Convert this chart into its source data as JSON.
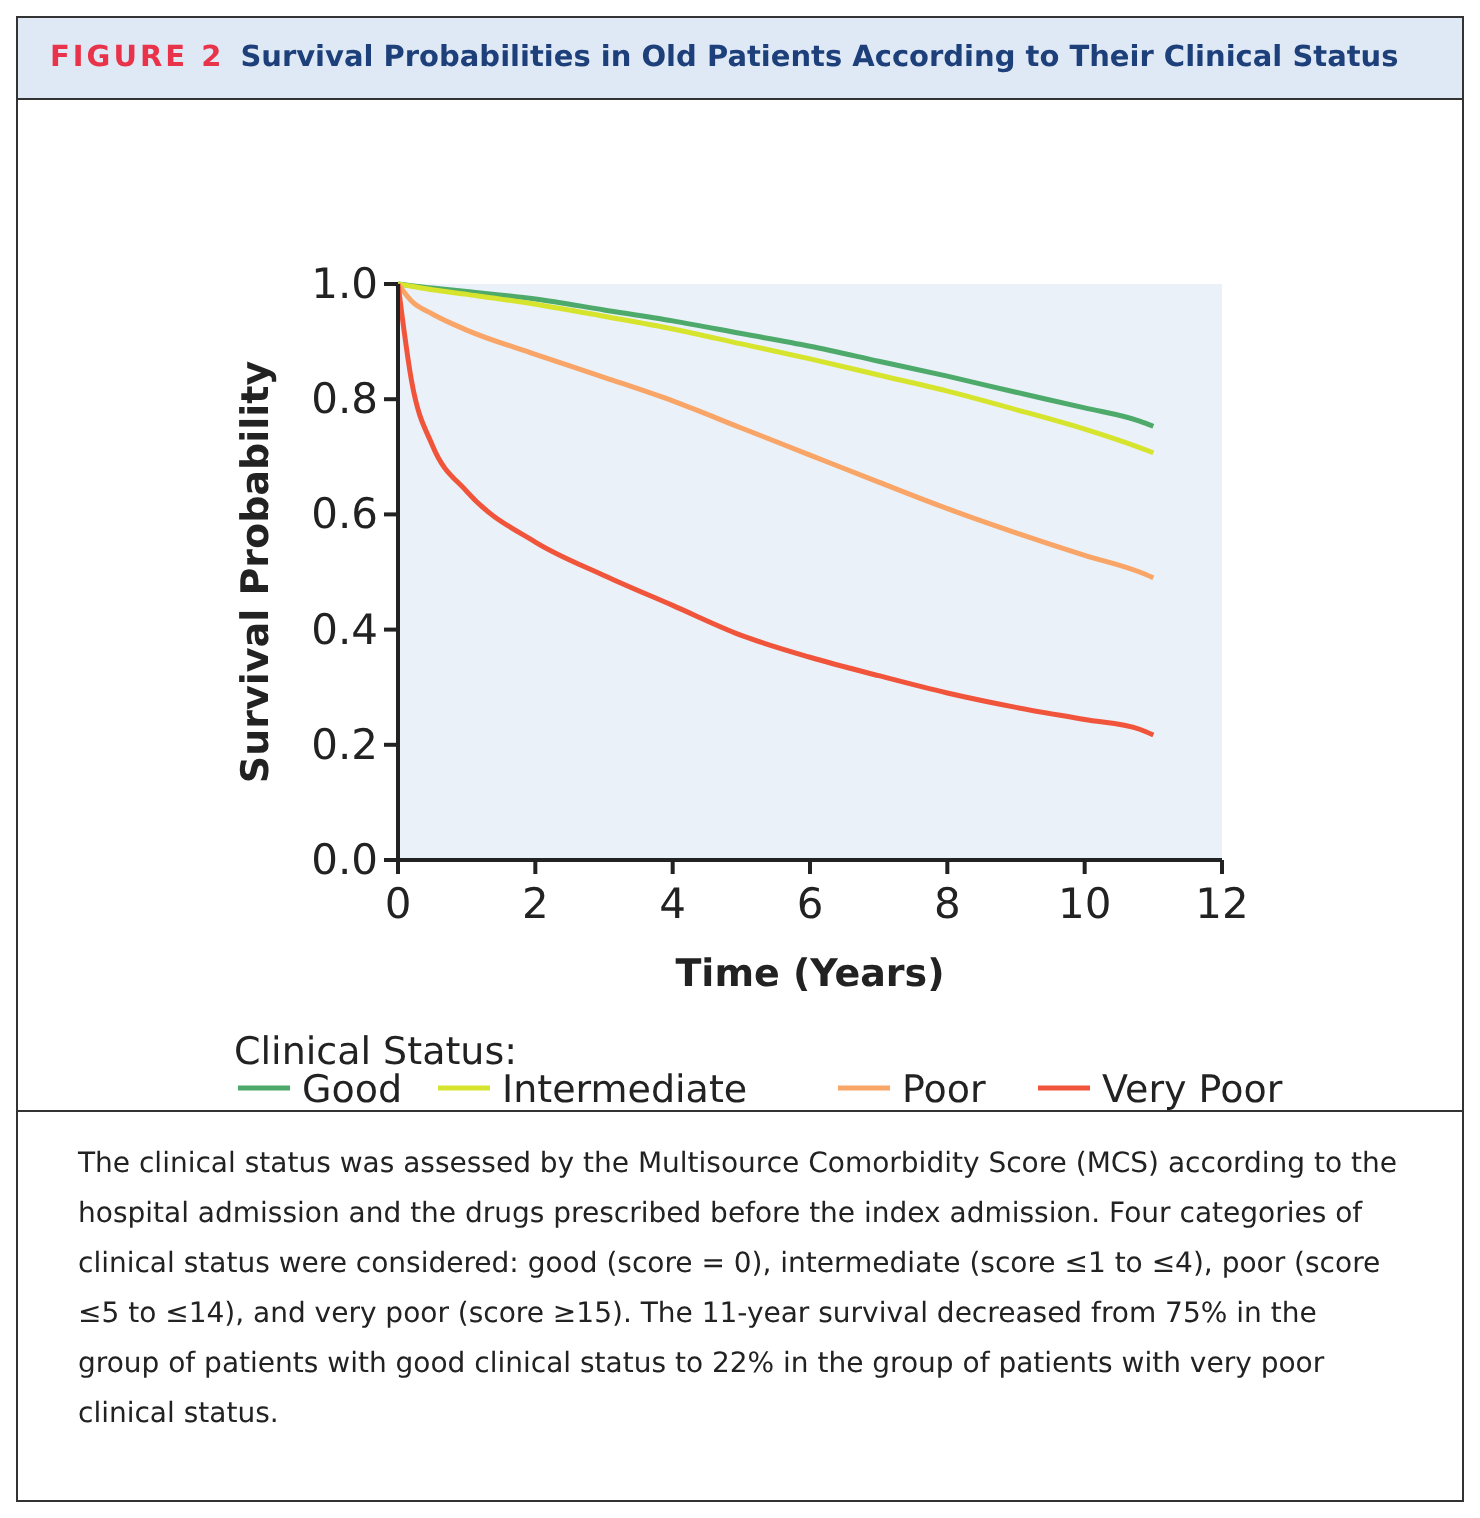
{
  "chart_data": {
    "type": "line",
    "title": "FIGURE 2 Survival Probabilities in Old Patients According to Their Clinical Status",
    "xlabel": "Time (Years)",
    "ylabel": "Survival Probability",
    "legend_title": "Clinical Status:",
    "legend": "bottom",
    "grid": false,
    "xlim": [
      0,
      12
    ],
    "ylim": [
      0,
      1
    ],
    "xticks": [
      0,
      2,
      4,
      6,
      8,
      10,
      12
    ],
    "yticks": [
      {
        "value": 0,
        "label": "0.0"
      },
      {
        "value": 0.2,
        "label": "0.2"
      },
      {
        "value": 0.4,
        "label": "0.4"
      },
      {
        "value": 0.6,
        "label": "0.6"
      },
      {
        "value": 0.8,
        "label": "0.8"
      },
      {
        "value": 1,
        "label": "1.0"
      }
    ],
    "x": [
      0,
      0.2,
      0.5,
      1,
      2,
      3,
      4,
      5,
      6,
      7,
      8,
      9,
      10,
      10.8,
      11
    ],
    "series": [
      {
        "name": "Good",
        "color": "#4daa6a",
        "values": [
          1,
          0.997,
          0.993,
          0.987,
          0.974,
          0.955,
          0.936,
          0.914,
          0.892,
          0.866,
          0.84,
          0.812,
          0.785,
          0.762,
          0.753
        ]
      },
      {
        "name": "Intermediate",
        "color": "#d6e42e",
        "values": [
          1,
          0.996,
          0.99,
          0.982,
          0.965,
          0.944,
          0.922,
          0.896,
          0.87,
          0.842,
          0.814,
          0.782,
          0.748,
          0.716,
          0.707
        ]
      },
      {
        "name": "Poor",
        "color": "#f8a567",
        "values": [
          1,
          0.97,
          0.948,
          0.92,
          0.878,
          0.838,
          0.797,
          0.75,
          0.703,
          0.656,
          0.61,
          0.568,
          0.529,
          0.5,
          0.49
        ]
      },
      {
        "name": "Very Poor",
        "color": "#f0553b",
        "values": [
          1,
          0.83,
          0.72,
          0.64,
          0.552,
          0.494,
          0.442,
          0.39,
          0.352,
          0.32,
          0.29,
          0.265,
          0.244,
          0.227,
          0.217
        ]
      }
    ],
    "annotations": [
      "The clinical status was assessed by the Multisource Comorbidity Score (MCS) according to the hospital admission and the drugs prescribed before the index admission. Four categories of clinical status were considered: good (score = 0), intermediate (score ≤1 to ≤4), poor (score ≤5 to ≤14), and very poor (score ≥15). The 11-year survival decreased from 75% in the group of patients with good clinical status to 22% in the group of patients with very poor clinical status."
    ]
  }
}
